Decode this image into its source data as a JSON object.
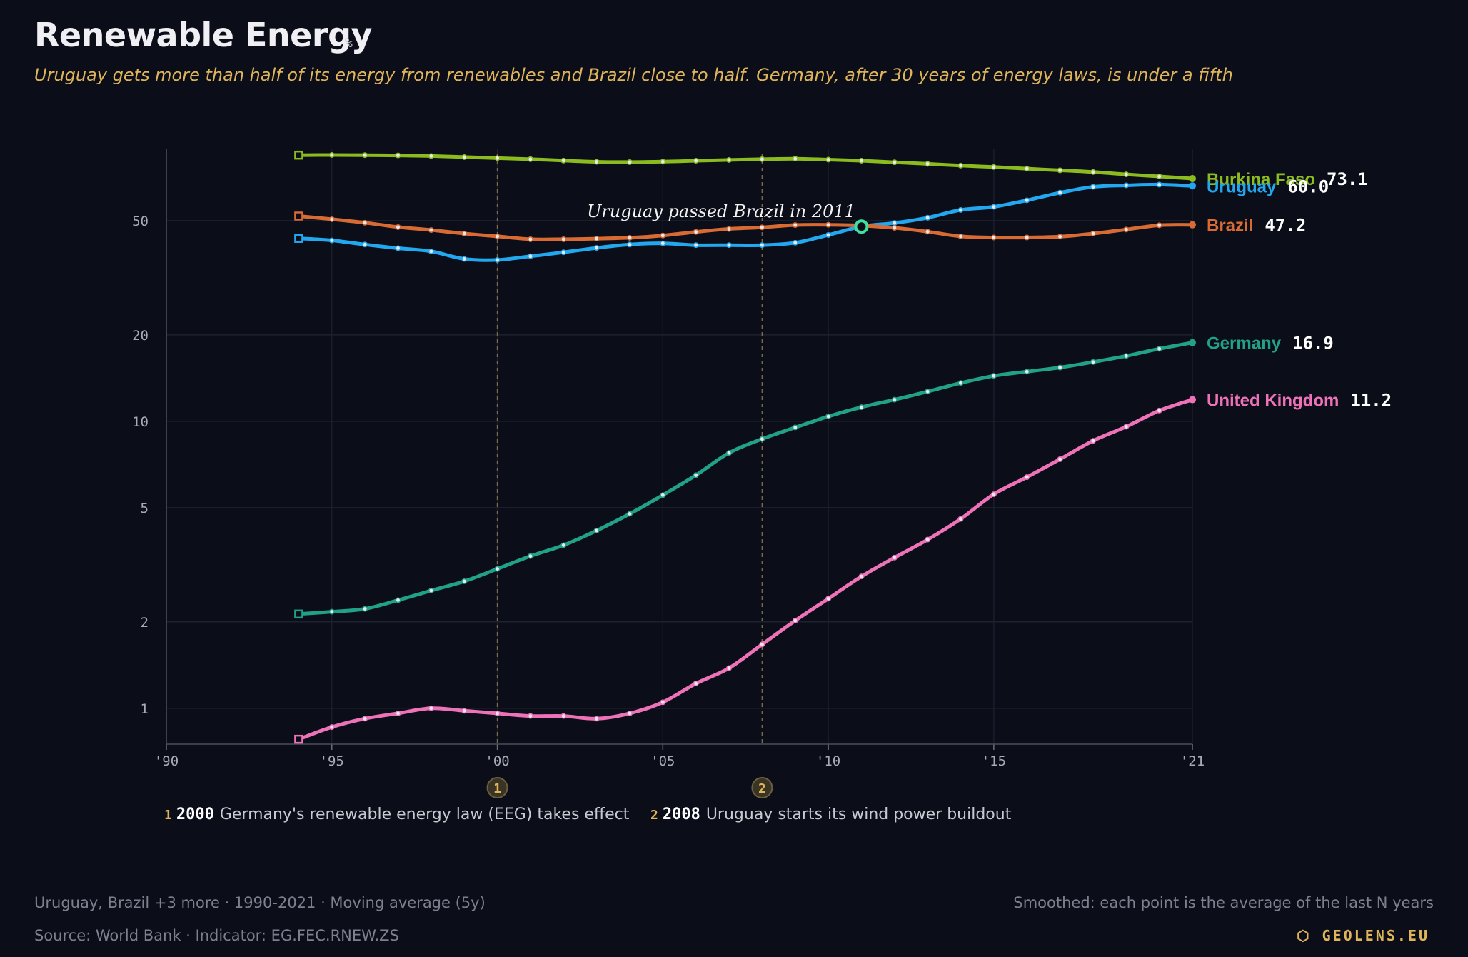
{
  "header": {
    "title": "Renewable Energy",
    "unit": "%",
    "subtitle": "Uruguay gets more than half of its energy from renewables and Brazil close to half. Germany, after 30 years of energy laws, is under a fifth"
  },
  "annotation": {
    "text": "Uruguay passed Brazil in 2011",
    "year": 2011,
    "value": 47.7
  },
  "events": [
    {
      "marker": "1",
      "year": "2000",
      "text": "Germany's renewable energy law (EEG) takes effect"
    },
    {
      "marker": "2",
      "year": "2008",
      "text": "Uruguay starts its wind power buildout"
    }
  ],
  "footer": {
    "left_top": "Uruguay, Brazil +3 more · 1990-2021 · Moving average (5y)",
    "left_bottom": "Source: World Bank · Indicator: EG.FEC.RNEW.ZS",
    "right_top": "Smoothed: each point is the average of the last N years",
    "brand": "GEOLENS.EU"
  },
  "colors": {
    "background": "#0b0e19",
    "grid": "#1e2230",
    "axis_text": "#a7abb8",
    "accent": "#e0b55a",
    "highlight": "#3ee0a0"
  },
  "chart_data": {
    "type": "line",
    "y_scale": "log",
    "ylim": [
      0.75,
      100
    ],
    "xlim": [
      1990,
      2021
    ],
    "x_ticks": [
      1990,
      1995,
      2000,
      2005,
      2010,
      2015,
      2021
    ],
    "x_tick_labels": [
      "'90",
      "'95",
      "'00",
      "'05",
      "'10",
      "'15",
      "'21"
    ],
    "y_ticks": [
      1,
      2,
      5,
      10,
      20,
      50
    ],
    "y_tick_labels": [
      "1",
      "2",
      "5",
      "10",
      "20",
      "50"
    ],
    "x": [
      1994,
      1995,
      1996,
      1997,
      1998,
      1999,
      2000,
      2001,
      2002,
      2003,
      2004,
      2005,
      2006,
      2007,
      2008,
      2009,
      2010,
      2011,
      2012,
      2013,
      2014,
      2015,
      2016,
      2017,
      2018,
      2019,
      2020,
      2021
    ],
    "series": [
      {
        "name": "Burkina Faso",
        "color": "#8bbb1e",
        "last_label": "73.1",
        "values": [
          84.6,
          84.7,
          84.6,
          84.4,
          84.0,
          83.3,
          82.6,
          81.9,
          81.0,
          80.2,
          80.0,
          80.3,
          80.9,
          81.4,
          81.9,
          82.2,
          81.6,
          80.9,
          79.9,
          78.9,
          77.8,
          76.9,
          75.9,
          74.9,
          73.9,
          72.5,
          71.3,
          70.1
        ]
      },
      {
        "name": "Uruguay",
        "color": "#22a8ee",
        "last_label": "60.0",
        "values": [
          43.4,
          42.7,
          41.3,
          40.1,
          39.1,
          36.8,
          36.5,
          37.6,
          38.8,
          40.2,
          41.3,
          41.7,
          41.1,
          41.1,
          41.1,
          41.9,
          44.6,
          47.7,
          49.1,
          51.2,
          54.5,
          55.9,
          58.9,
          62.6,
          65.6,
          66.4,
          66.8,
          66.1
        ]
      },
      {
        "name": "Brazil",
        "color": "#d86a33",
        "last_label": "47.2",
        "values": [
          51.9,
          50.6,
          49.2,
          47.5,
          46.4,
          45.1,
          44.1,
          43.1,
          43.1,
          43.3,
          43.6,
          44.4,
          45.7,
          46.8,
          47.4,
          48.3,
          48.4,
          48.1,
          47.2,
          45.8,
          44.1,
          43.7,
          43.7,
          44.0,
          45.1,
          46.6,
          48.2,
          48.4
        ]
      },
      {
        "name": "Germany",
        "color": "#21a187",
        "last_label": "16.9",
        "values": [
          2.13,
          2.17,
          2.22,
          2.38,
          2.57,
          2.77,
          3.06,
          3.39,
          3.7,
          4.16,
          4.76,
          5.53,
          6.49,
          7.76,
          8.68,
          9.52,
          10.4,
          11.2,
          11.9,
          12.7,
          13.6,
          14.4,
          14.9,
          15.4,
          16.1,
          16.9,
          17.9,
          18.8
        ]
      },
      {
        "name": "United Kingdom",
        "color": "#ee72b8",
        "last_label": "11.2",
        "values": [
          0.78,
          0.86,
          0.92,
          0.96,
          1.0,
          0.98,
          0.96,
          0.94,
          0.94,
          0.92,
          0.96,
          1.05,
          1.22,
          1.38,
          1.67,
          2.02,
          2.41,
          2.88,
          3.35,
          3.87,
          4.57,
          5.57,
          6.39,
          7.38,
          8.55,
          9.58,
          10.9,
          11.9
        ]
      }
    ]
  }
}
